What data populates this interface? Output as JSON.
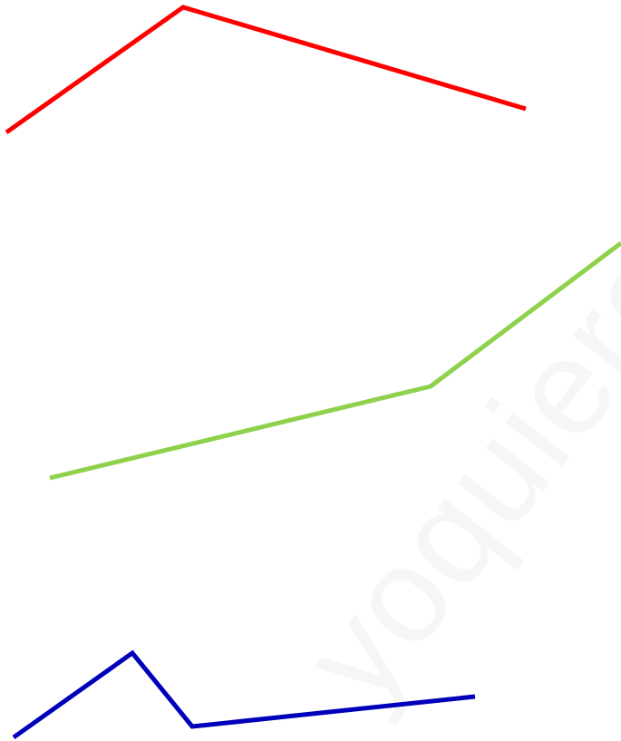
{
  "figure": {
    "background": "#ffffff",
    "watermark": {
      "text": "yoquieroa",
      "color": "#000000"
    },
    "lines": [
      {
        "name": "red-polyline",
        "color": "#ff0000"
      },
      {
        "name": "green-polyline",
        "color": "#8ed14b"
      },
      {
        "name": "blue-polyline",
        "color": "#0000bb"
      }
    ]
  }
}
